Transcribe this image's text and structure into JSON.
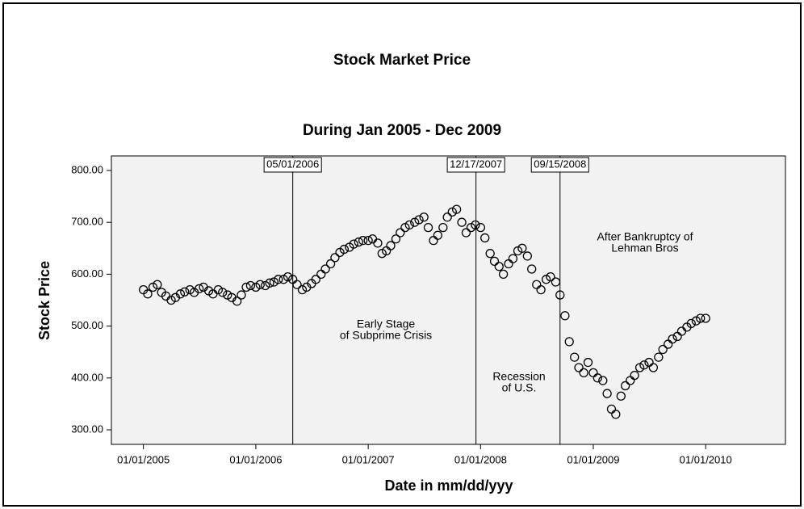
{
  "chart_data": {
    "type": "scatter",
    "title": "Stock Market Price",
    "subtitle": "During Jan 2005 - Dec 2009",
    "x_label": "Date in mm/dd/yyy",
    "y_label": "Stock Price",
    "color": "#000000",
    "xlim": [
      "09/19/2004",
      "09/17/2010"
    ],
    "xticks": [
      "01/01/2005",
      "01/01/2006",
      "01/01/2007",
      "01/01/2008",
      "01/01/2009",
      "01/01/2010"
    ],
    "ylim": [
      272,
      828
    ],
    "yticks": [
      {
        "value": 300,
        "label": "300.00"
      },
      {
        "value": 400,
        "label": "400.00"
      },
      {
        "value": 500,
        "label": "500.00"
      },
      {
        "value": 600,
        "label": "600.00"
      },
      {
        "value": 700,
        "label": "700.00"
      },
      {
        "value": 800,
        "label": "800.00"
      }
    ],
    "reference_lines": [
      {
        "x": "05/01/2006",
        "label": "05/01/2006"
      },
      {
        "x": "12/17/2007",
        "label": "12/17/2007"
      },
      {
        "x": "09/15/2008",
        "label": "09/15/2008"
      }
    ],
    "annotations": [
      [
        "Early Stage",
        "of Subprime Crisis"
      ],
      [
        "Recession",
        "of U.S."
      ],
      [
        "After Bankruptcy of",
        "Lehman Bros"
      ]
    ],
    "x": [
      "01/01/2005",
      "01/15/2005",
      "02/01/2005",
      "02/15/2005",
      "03/01/2005",
      "03/15/2005",
      "04/01/2005",
      "04/15/2005",
      "05/01/2005",
      "05/15/2005",
      "06/01/2005",
      "06/15/2005",
      "07/01/2005",
      "07/15/2005",
      "08/01/2005",
      "08/15/2005",
      "09/01/2005",
      "09/15/2005",
      "10/01/2005",
      "10/15/2005",
      "11/01/2005",
      "11/15/2005",
      "12/01/2005",
      "12/15/2005",
      "01/01/2006",
      "01/15/2006",
      "02/01/2006",
      "02/15/2006",
      "03/01/2006",
      "03/15/2006",
      "04/01/2006",
      "04/15/2006",
      "05/01/2006",
      "05/15/2006",
      "06/01/2006",
      "06/15/2006",
      "07/01/2006",
      "07/15/2006",
      "08/01/2006",
      "08/15/2006",
      "09/01/2006",
      "09/15/2006",
      "10/01/2006",
      "10/15/2006",
      "11/01/2006",
      "11/15/2006",
      "12/01/2006",
      "12/15/2006",
      "01/01/2007",
      "01/15/2007",
      "02/01/2007",
      "02/15/2007",
      "03/01/2007",
      "03/15/2007",
      "04/01/2007",
      "04/15/2007",
      "05/01/2007",
      "05/15/2007",
      "06/01/2007",
      "06/15/2007",
      "07/01/2007",
      "07/15/2007",
      "08/01/2007",
      "08/15/2007",
      "09/01/2007",
      "09/15/2007",
      "10/01/2007",
      "10/15/2007",
      "11/01/2007",
      "11/15/2007",
      "12/01/2007",
      "12/15/2007",
      "01/01/2008",
      "01/15/2008",
      "02/01/2008",
      "02/15/2008",
      "03/01/2008",
      "03/15/2008",
      "04/01/2008",
      "04/15/2008",
      "05/01/2008",
      "05/15/2008",
      "06/01/2008",
      "06/15/2008",
      "07/01/2008",
      "07/15/2008",
      "08/01/2008",
      "08/15/2008",
      "09/01/2008",
      "09/15/2008",
      "10/01/2008",
      "10/15/2008",
      "11/01/2008",
      "11/15/2008",
      "12/01/2008",
      "12/15/2008",
      "01/01/2009",
      "01/15/2009",
      "02/01/2009",
      "02/15/2009",
      "03/01/2009",
      "03/15/2009",
      "04/01/2009",
      "04/15/2009",
      "05/01/2009",
      "05/15/2009",
      "06/01/2009",
      "06/15/2009",
      "07/01/2009",
      "07/15/2009",
      "08/01/2009",
      "08/15/2009",
      "09/01/2009",
      "09/15/2009",
      "10/01/2009",
      "10/15/2009",
      "11/01/2009",
      "11/15/2009",
      "12/01/2009",
      "12/15/2009",
      "01/01/2010"
    ],
    "values": [
      570,
      562,
      575,
      580,
      565,
      558,
      550,
      555,
      562,
      566,
      570,
      565,
      572,
      575,
      568,
      562,
      570,
      565,
      560,
      555,
      548,
      560,
      575,
      578,
      575,
      580,
      578,
      583,
      585,
      590,
      590,
      595,
      590,
      580,
      570,
      575,
      582,
      590,
      600,
      610,
      620,
      632,
      642,
      648,
      652,
      658,
      662,
      665,
      665,
      668,
      660,
      640,
      645,
      655,
      668,
      680,
      690,
      695,
      700,
      705,
      710,
      690,
      665,
      675,
      690,
      710,
      720,
      725,
      700,
      680,
      690,
      695,
      690,
      670,
      640,
      625,
      615,
      600,
      620,
      630,
      645,
      650,
      635,
      610,
      580,
      570,
      590,
      595,
      585,
      560,
      520,
      470,
      440,
      420,
      410,
      430,
      410,
      400,
      395,
      370,
      340,
      330,
      365,
      385,
      395,
      405,
      420,
      425,
      430,
      420,
      440,
      455,
      465,
      475,
      480,
      490,
      498,
      505,
      510,
      515,
      515
    ]
  }
}
